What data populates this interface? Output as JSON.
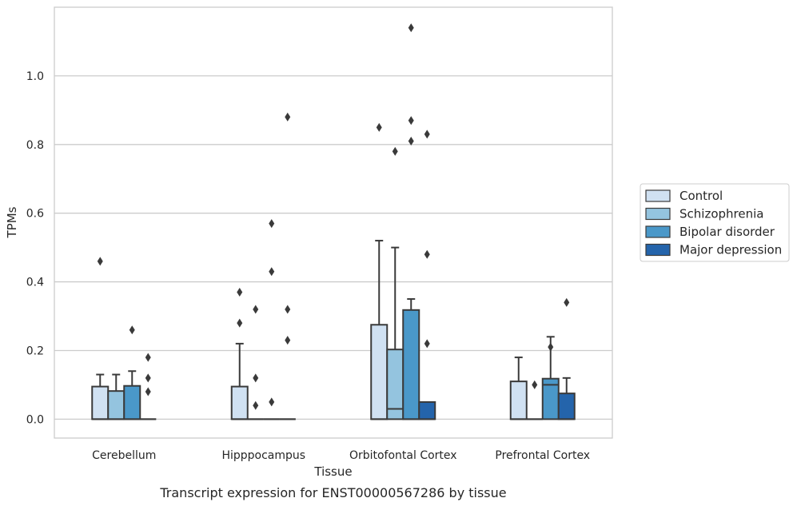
{
  "chart_data": {
    "type": "boxplot",
    "caption": "Transcript expression for ENST00000567286 by tissue",
    "xlabel": "Tissue",
    "ylabel": "TPMs",
    "ylim": [
      -0.055,
      1.2
    ],
    "yticks": [
      0.0,
      0.2,
      0.4,
      0.6,
      0.8,
      1.0
    ],
    "grid": true,
    "legend_position": "right",
    "categories": [
      "Cerebellum",
      "Hipppocampus",
      "Orbitofontal Cortex",
      "Prefrontal Cortex"
    ],
    "series": [
      {
        "name": "Control",
        "color": "#d0e1f2",
        "boxes": [
          {
            "q1": 0.0,
            "median": 0.0,
            "q3": 0.095,
            "whisker_low": 0.0,
            "whisker_high": 0.13,
            "outliers": [
              0.46
            ]
          },
          {
            "q1": 0.0,
            "median": 0.0,
            "q3": 0.095,
            "whisker_low": 0.0,
            "whisker_high": 0.22,
            "outliers": [
              0.37,
              0.28
            ]
          },
          {
            "q1": 0.0,
            "median": 0.0,
            "q3": 0.275,
            "whisker_low": 0.0,
            "whisker_high": 0.52,
            "outliers": [
              0.85
            ]
          },
          {
            "q1": 0.0,
            "median": 0.0,
            "q3": 0.11,
            "whisker_low": 0.0,
            "whisker_high": 0.18,
            "outliers": []
          }
        ]
      },
      {
        "name": "Schizophrenia",
        "color": "#94c4df",
        "boxes": [
          {
            "q1": 0.0,
            "median": 0.0,
            "q3": 0.082,
            "whisker_low": 0.0,
            "whisker_high": 0.13,
            "outliers": []
          },
          {
            "q1": 0.0,
            "median": 0.0,
            "q3": 0.0,
            "whisker_low": 0.0,
            "whisker_high": 0.0,
            "outliers": [
              0.32,
              0.12,
              0.04
            ]
          },
          {
            "q1": 0.0,
            "median": 0.03,
            "q3": 0.203,
            "whisker_low": 0.0,
            "whisker_high": 0.5,
            "outliers": [
              0.78
            ]
          },
          {
            "q1": 0.0,
            "median": 0.0,
            "q3": 0.0,
            "whisker_low": 0.0,
            "whisker_high": 0.0,
            "outliers": [
              0.1
            ]
          }
        ]
      },
      {
        "name": "Bipolar disorder",
        "color": "#4a98c9",
        "boxes": [
          {
            "q1": 0.0,
            "median": 0.0,
            "q3": 0.097,
            "whisker_low": 0.0,
            "whisker_high": 0.14,
            "outliers": [
              0.26
            ]
          },
          {
            "q1": 0.0,
            "median": 0.0,
            "q3": 0.0,
            "whisker_low": 0.0,
            "whisker_high": 0.0,
            "outliers": [
              0.57,
              0.43,
              0.05
            ]
          },
          {
            "q1": 0.0,
            "median": 0.0,
            "q3": 0.318,
            "whisker_low": 0.0,
            "whisker_high": 0.35,
            "outliers": [
              1.14,
              0.87,
              0.81
            ]
          },
          {
            "q1": 0.0,
            "median": 0.1,
            "q3": 0.118,
            "whisker_low": 0.0,
            "whisker_high": 0.24,
            "outliers": [
              0.21
            ]
          }
        ]
      },
      {
        "name": "Major depression",
        "color": "#2464ab",
        "boxes": [
          {
            "q1": 0.0,
            "median": 0.0,
            "q3": 0.0,
            "whisker_low": 0.0,
            "whisker_high": 0.0,
            "outliers": [
              0.18,
              0.12,
              0.08
            ]
          },
          {
            "q1": 0.0,
            "median": 0.0,
            "q3": 0.0,
            "whisker_low": 0.0,
            "whisker_high": 0.0,
            "outliers": [
              0.88,
              0.32,
              0.23
            ]
          },
          {
            "q1": 0.0,
            "median": 0.0,
            "q3": 0.05,
            "whisker_low": 0.0,
            "whisker_high": 0.05,
            "outliers": [
              0.83,
              0.48,
              0.22
            ]
          },
          {
            "q1": 0.0,
            "median": 0.0,
            "q3": 0.075,
            "whisker_low": 0.0,
            "whisker_high": 0.12,
            "outliers": [
              0.34
            ]
          }
        ]
      }
    ]
  }
}
